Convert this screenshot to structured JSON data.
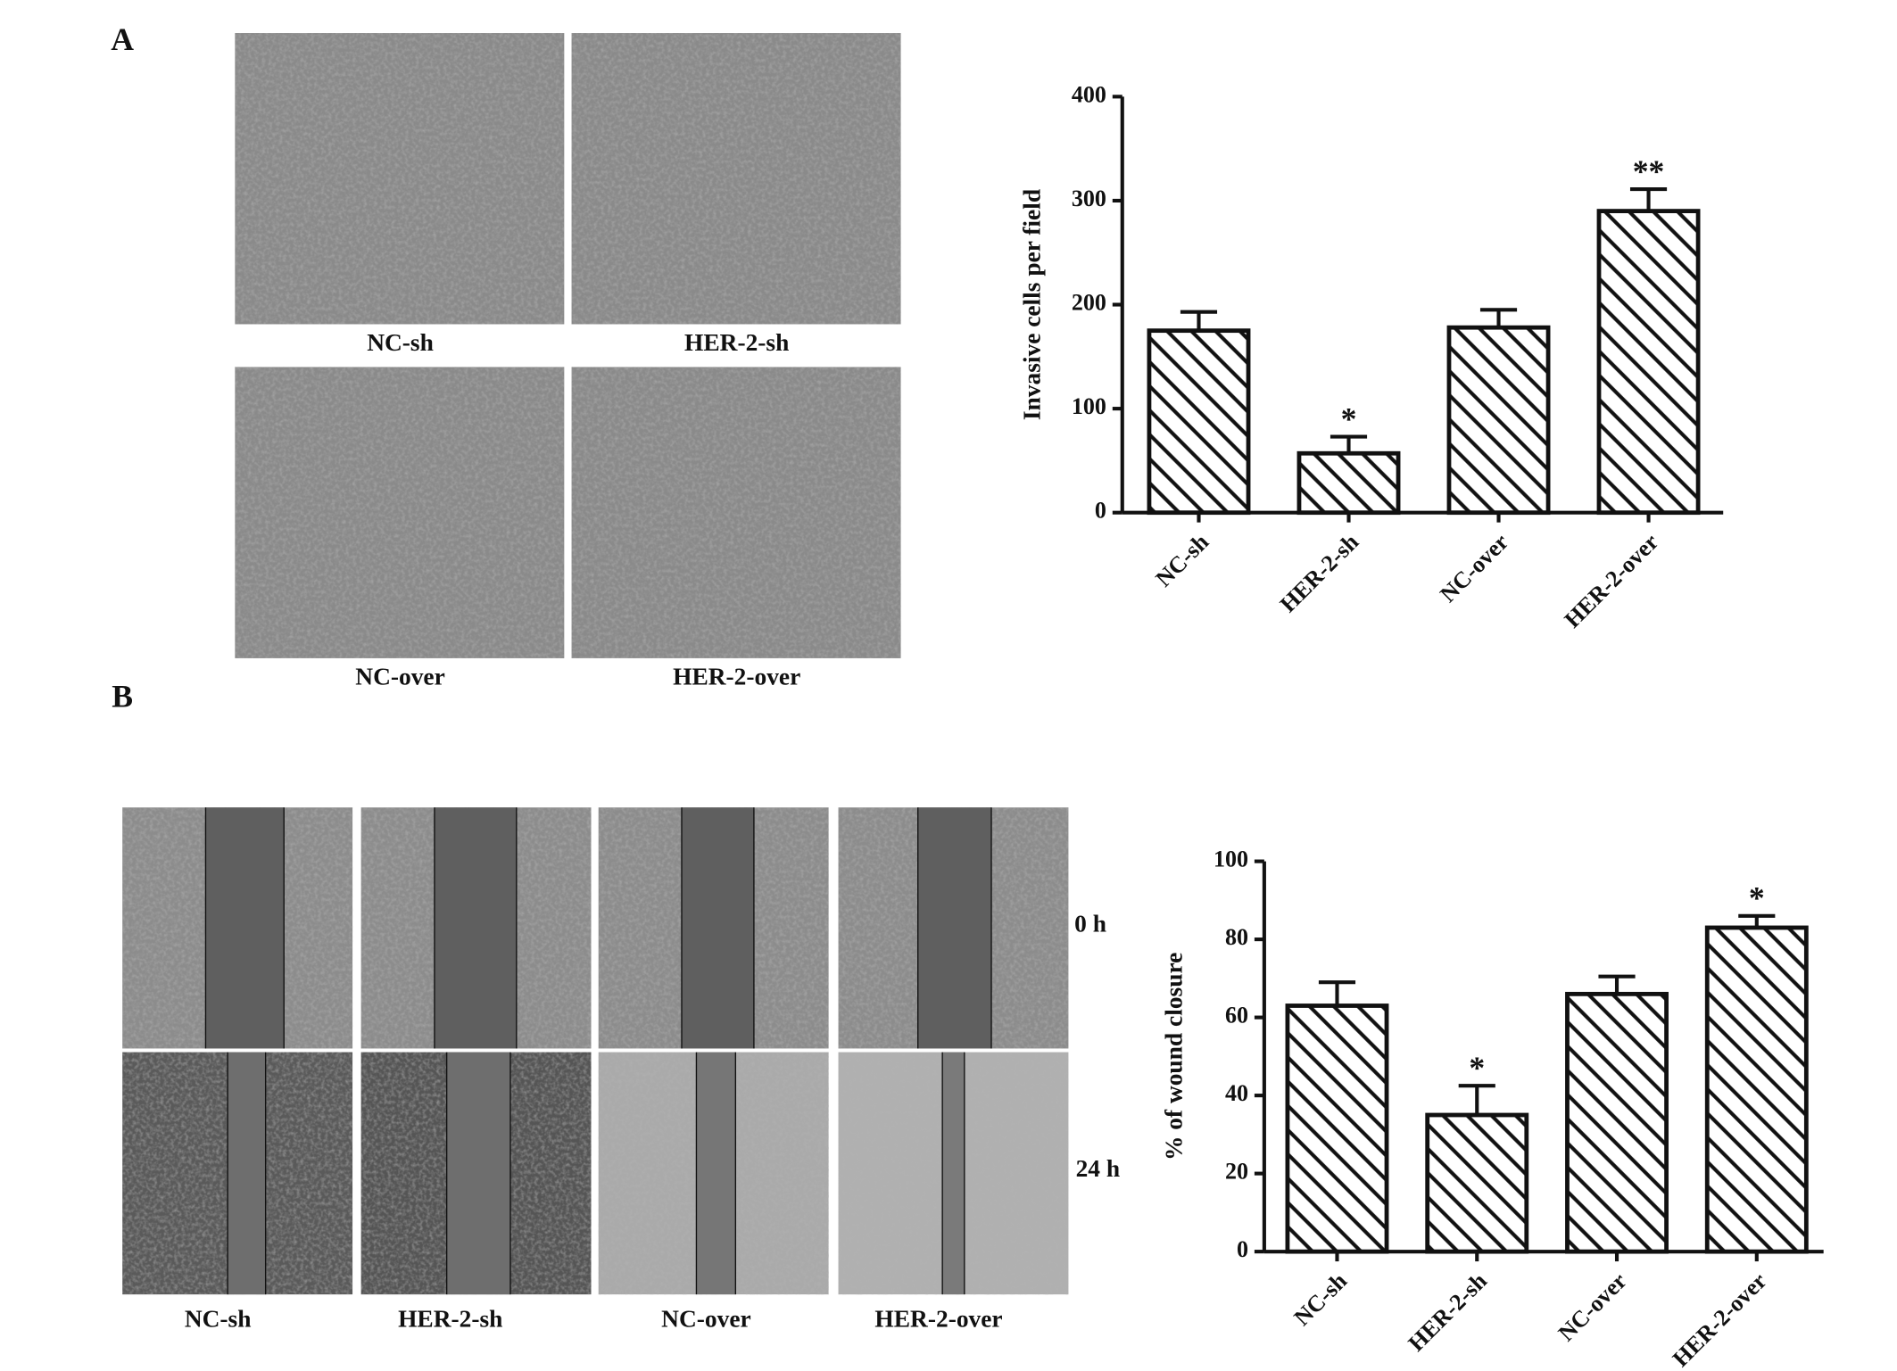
{
  "panel_labels": [
    "A",
    "B"
  ],
  "invasion_images": [
    "NC-sh",
    "HER-2-sh",
    "NC-over",
    "HER-2-over"
  ],
  "wound_images": {
    "columns": [
      "NC-sh",
      "HER-2-sh",
      "NC-over",
      "HER-2-over"
    ],
    "rows": [
      "0 h",
      "24 h"
    ]
  },
  "chart_data": [
    {
      "type": "bar",
      "ylabel": "Invasive cells per field",
      "categories": [
        "NC-sh",
        "HER-2-sh",
        "NC-over",
        "HER-2-over"
      ],
      "values": [
        175,
        57,
        178,
        290
      ],
      "errors": [
        18,
        16,
        17,
        21
      ],
      "annotations": [
        null,
        "*",
        null,
        "**"
      ],
      "color": "#111111",
      "ylim": [
        0,
        400
      ],
      "yticks": [
        0,
        100,
        200,
        300,
        400
      ],
      "grid": false
    },
    {
      "type": "bar",
      "ylabel": "% of wound closure",
      "categories": [
        "NC-sh",
        "HER-2-sh",
        "NC-over",
        "HER-2-over"
      ],
      "values": [
        63,
        35,
        66,
        83
      ],
      "errors": [
        6,
        7.5,
        4.5,
        3
      ],
      "annotations": [
        null,
        "*",
        null,
        "*"
      ],
      "color": "#111111",
      "ylim": [
        0,
        100
      ],
      "yticks": [
        0,
        20,
        40,
        60,
        80,
        100
      ],
      "grid": false
    }
  ]
}
